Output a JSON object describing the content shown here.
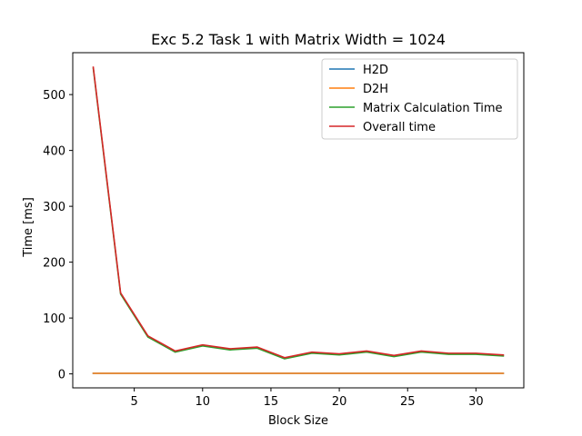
{
  "chart_data": {
    "type": "line",
    "title": "Exc 5.2 Task 1 with Matrix Width = 1024",
    "xlabel": "Block Size",
    "ylabel": "Time [ms]",
    "xlim": [
      0.5,
      33.5
    ],
    "ylim": [
      -25,
      575
    ],
    "xticks": [
      5,
      10,
      15,
      20,
      25,
      30
    ],
    "yticks": [
      0,
      100,
      200,
      300,
      400,
      500
    ],
    "grid": false,
    "legend_position": "upper right",
    "x": [
      2,
      4,
      6,
      8,
      10,
      12,
      14,
      16,
      18,
      20,
      22,
      24,
      26,
      28,
      30,
      32
    ],
    "series": [
      {
        "name": "H2D",
        "color": "#1f77b4",
        "values": [
          1,
          1,
          1,
          1,
          1,
          1,
          1,
          1,
          1,
          1,
          1,
          1,
          1,
          1,
          1,
          1
        ]
      },
      {
        "name": "D2H",
        "color": "#ff7f0e",
        "values": [
          1,
          1,
          1,
          1,
          1,
          1,
          1,
          1,
          1,
          1,
          1,
          1,
          1,
          1,
          1,
          1
        ]
      },
      {
        "name": "Matrix Calculation Time",
        "color": "#2ca02c",
        "values": [
          547,
          143,
          66,
          39,
          50,
          43,
          46,
          27,
          37,
          34,
          39,
          31,
          39,
          35,
          35,
          32
        ]
      },
      {
        "name": "Overall time",
        "color": "#d62728",
        "values": [
          549,
          145,
          68,
          41,
          52,
          45,
          48,
          29,
          39,
          36,
          41,
          33,
          41,
          37,
          37,
          34
        ]
      }
    ]
  }
}
